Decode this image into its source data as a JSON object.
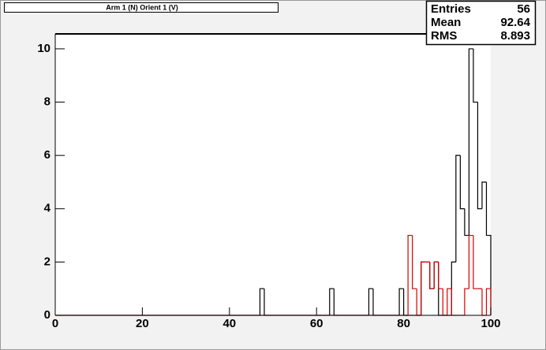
{
  "chart_data": {
    "type": "histogram",
    "title": "Arm 1 (N) Orient 1 (V)",
    "stats": {
      "labels": [
        "Entries",
        "Mean",
        "RMS"
      ],
      "values": [
        "56",
        "92.64",
        "8.893"
      ]
    },
    "bins": [
      0,
      1,
      2,
      3,
      4,
      5,
      6,
      7,
      8,
      9,
      10,
      11,
      12,
      13,
      14,
      15,
      16,
      17,
      18,
      19,
      20,
      21,
      22,
      23,
      24,
      25,
      26,
      27,
      28,
      29,
      30,
      31,
      32,
      33,
      34,
      35,
      36,
      37,
      38,
      39,
      40,
      41,
      42,
      43,
      44,
      45,
      46,
      47,
      48,
      49,
      50,
      51,
      52,
      53,
      54,
      55,
      56,
      57,
      58,
      59,
      60,
      61,
      62,
      63,
      64,
      65,
      66,
      67,
      68,
      69,
      70,
      71,
      72,
      73,
      74,
      75,
      76,
      77,
      78,
      79,
      80,
      81,
      82,
      83,
      84,
      85,
      86,
      87,
      88,
      89,
      90,
      91,
      92,
      93,
      94,
      95,
      96,
      97,
      98,
      99,
      100
    ],
    "series": [
      {
        "color": "#000000",
        "values": [
          0,
          0,
          0,
          0,
          0,
          0,
          0,
          0,
          0,
          0,
          0,
          0,
          0,
          0,
          0,
          0,
          0,
          0,
          0,
          0,
          0,
          0,
          0,
          0,
          0,
          0,
          0,
          0,
          0,
          0,
          0,
          0,
          0,
          0,
          0,
          0,
          0,
          0,
          0,
          0,
          0,
          0,
          0,
          0,
          0,
          0,
          0,
          1,
          0,
          0,
          0,
          0,
          0,
          0,
          0,
          0,
          0,
          0,
          0,
          0,
          0,
          0,
          0,
          1,
          0,
          0,
          0,
          0,
          0,
          0,
          0,
          0,
          1,
          0,
          0,
          0,
          0,
          0,
          0,
          1,
          0,
          0,
          0,
          0,
          2,
          2,
          1,
          2,
          0,
          0,
          0,
          2,
          6,
          4,
          3,
          10,
          8,
          4,
          5,
          3
        ]
      },
      {
        "color": "#d40000",
        "values": [
          0,
          0,
          0,
          0,
          0,
          0,
          0,
          0,
          0,
          0,
          0,
          0,
          0,
          0,
          0,
          0,
          0,
          0,
          0,
          0,
          0,
          0,
          0,
          0,
          0,
          0,
          0,
          0,
          0,
          0,
          0,
          0,
          0,
          0,
          0,
          0,
          0,
          0,
          0,
          0,
          0,
          0,
          0,
          0,
          0,
          0,
          0,
          0,
          0,
          0,
          0,
          0,
          0,
          0,
          0,
          0,
          0,
          0,
          0,
          0,
          0,
          0,
          0,
          0,
          0,
          0,
          0,
          0,
          0,
          0,
          0,
          0,
          0,
          0,
          0,
          0,
          0,
          0,
          0,
          0,
          0,
          3,
          1,
          0,
          2,
          2,
          1,
          2,
          1,
          0,
          1,
          0,
          0,
          0,
          1,
          3,
          1,
          1,
          0,
          1
        ]
      }
    ],
    "xlim": [
      0,
      100
    ],
    "ylim": [
      0,
      10.56
    ],
    "xticks": [
      0,
      20,
      40,
      60,
      80,
      100
    ],
    "yticks": [
      0,
      2,
      4,
      6,
      8,
      10
    ]
  }
}
